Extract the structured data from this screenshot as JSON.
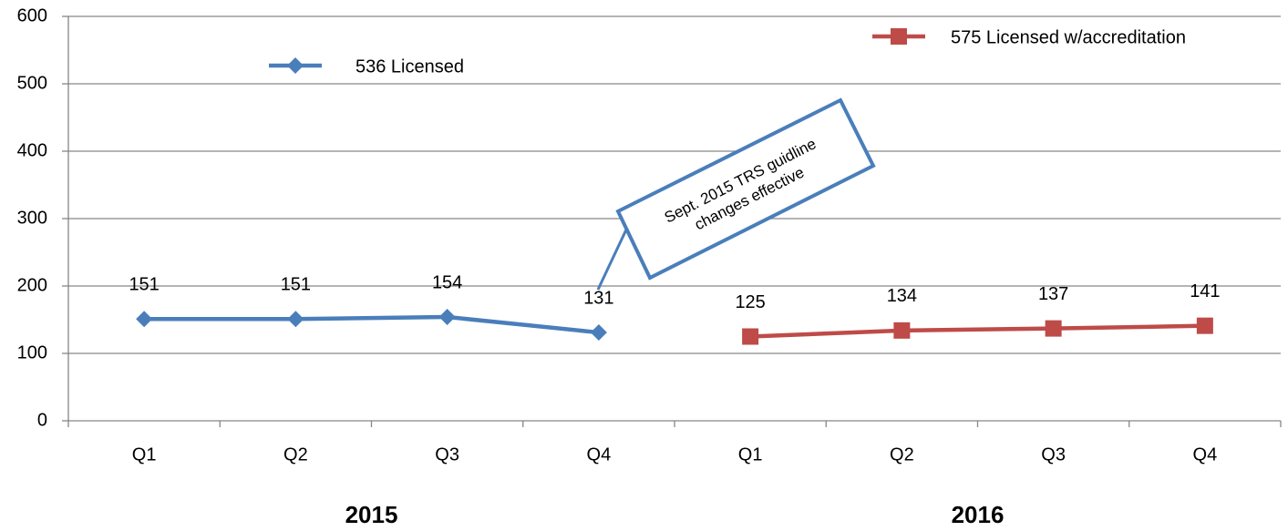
{
  "chart_data": {
    "type": "line",
    "categories": [
      "Q1",
      "Q2",
      "Q3",
      "Q4",
      "Q1",
      "Q2",
      "Q3",
      "Q4"
    ],
    "group_labels": [
      "2015",
      "2016"
    ],
    "series": [
      {
        "name": "536 Licensed",
        "color": "#4a7ebb",
        "marker": "diamond",
        "values": [
          151,
          151,
          154,
          131,
          null,
          null,
          null,
          null
        ]
      },
      {
        "name": "575 Licensed w/accreditation",
        "color": "#be4b48",
        "marker": "square",
        "values": [
          null,
          null,
          null,
          null,
          125,
          134,
          137,
          141
        ]
      }
    ],
    "ylim": [
      0,
      600
    ],
    "yticks": [
      0,
      100,
      200,
      300,
      400,
      500,
      600
    ],
    "grid": true,
    "annotation": [
      "Sept. 2015  TRS guidline",
      "changes effective"
    ]
  }
}
